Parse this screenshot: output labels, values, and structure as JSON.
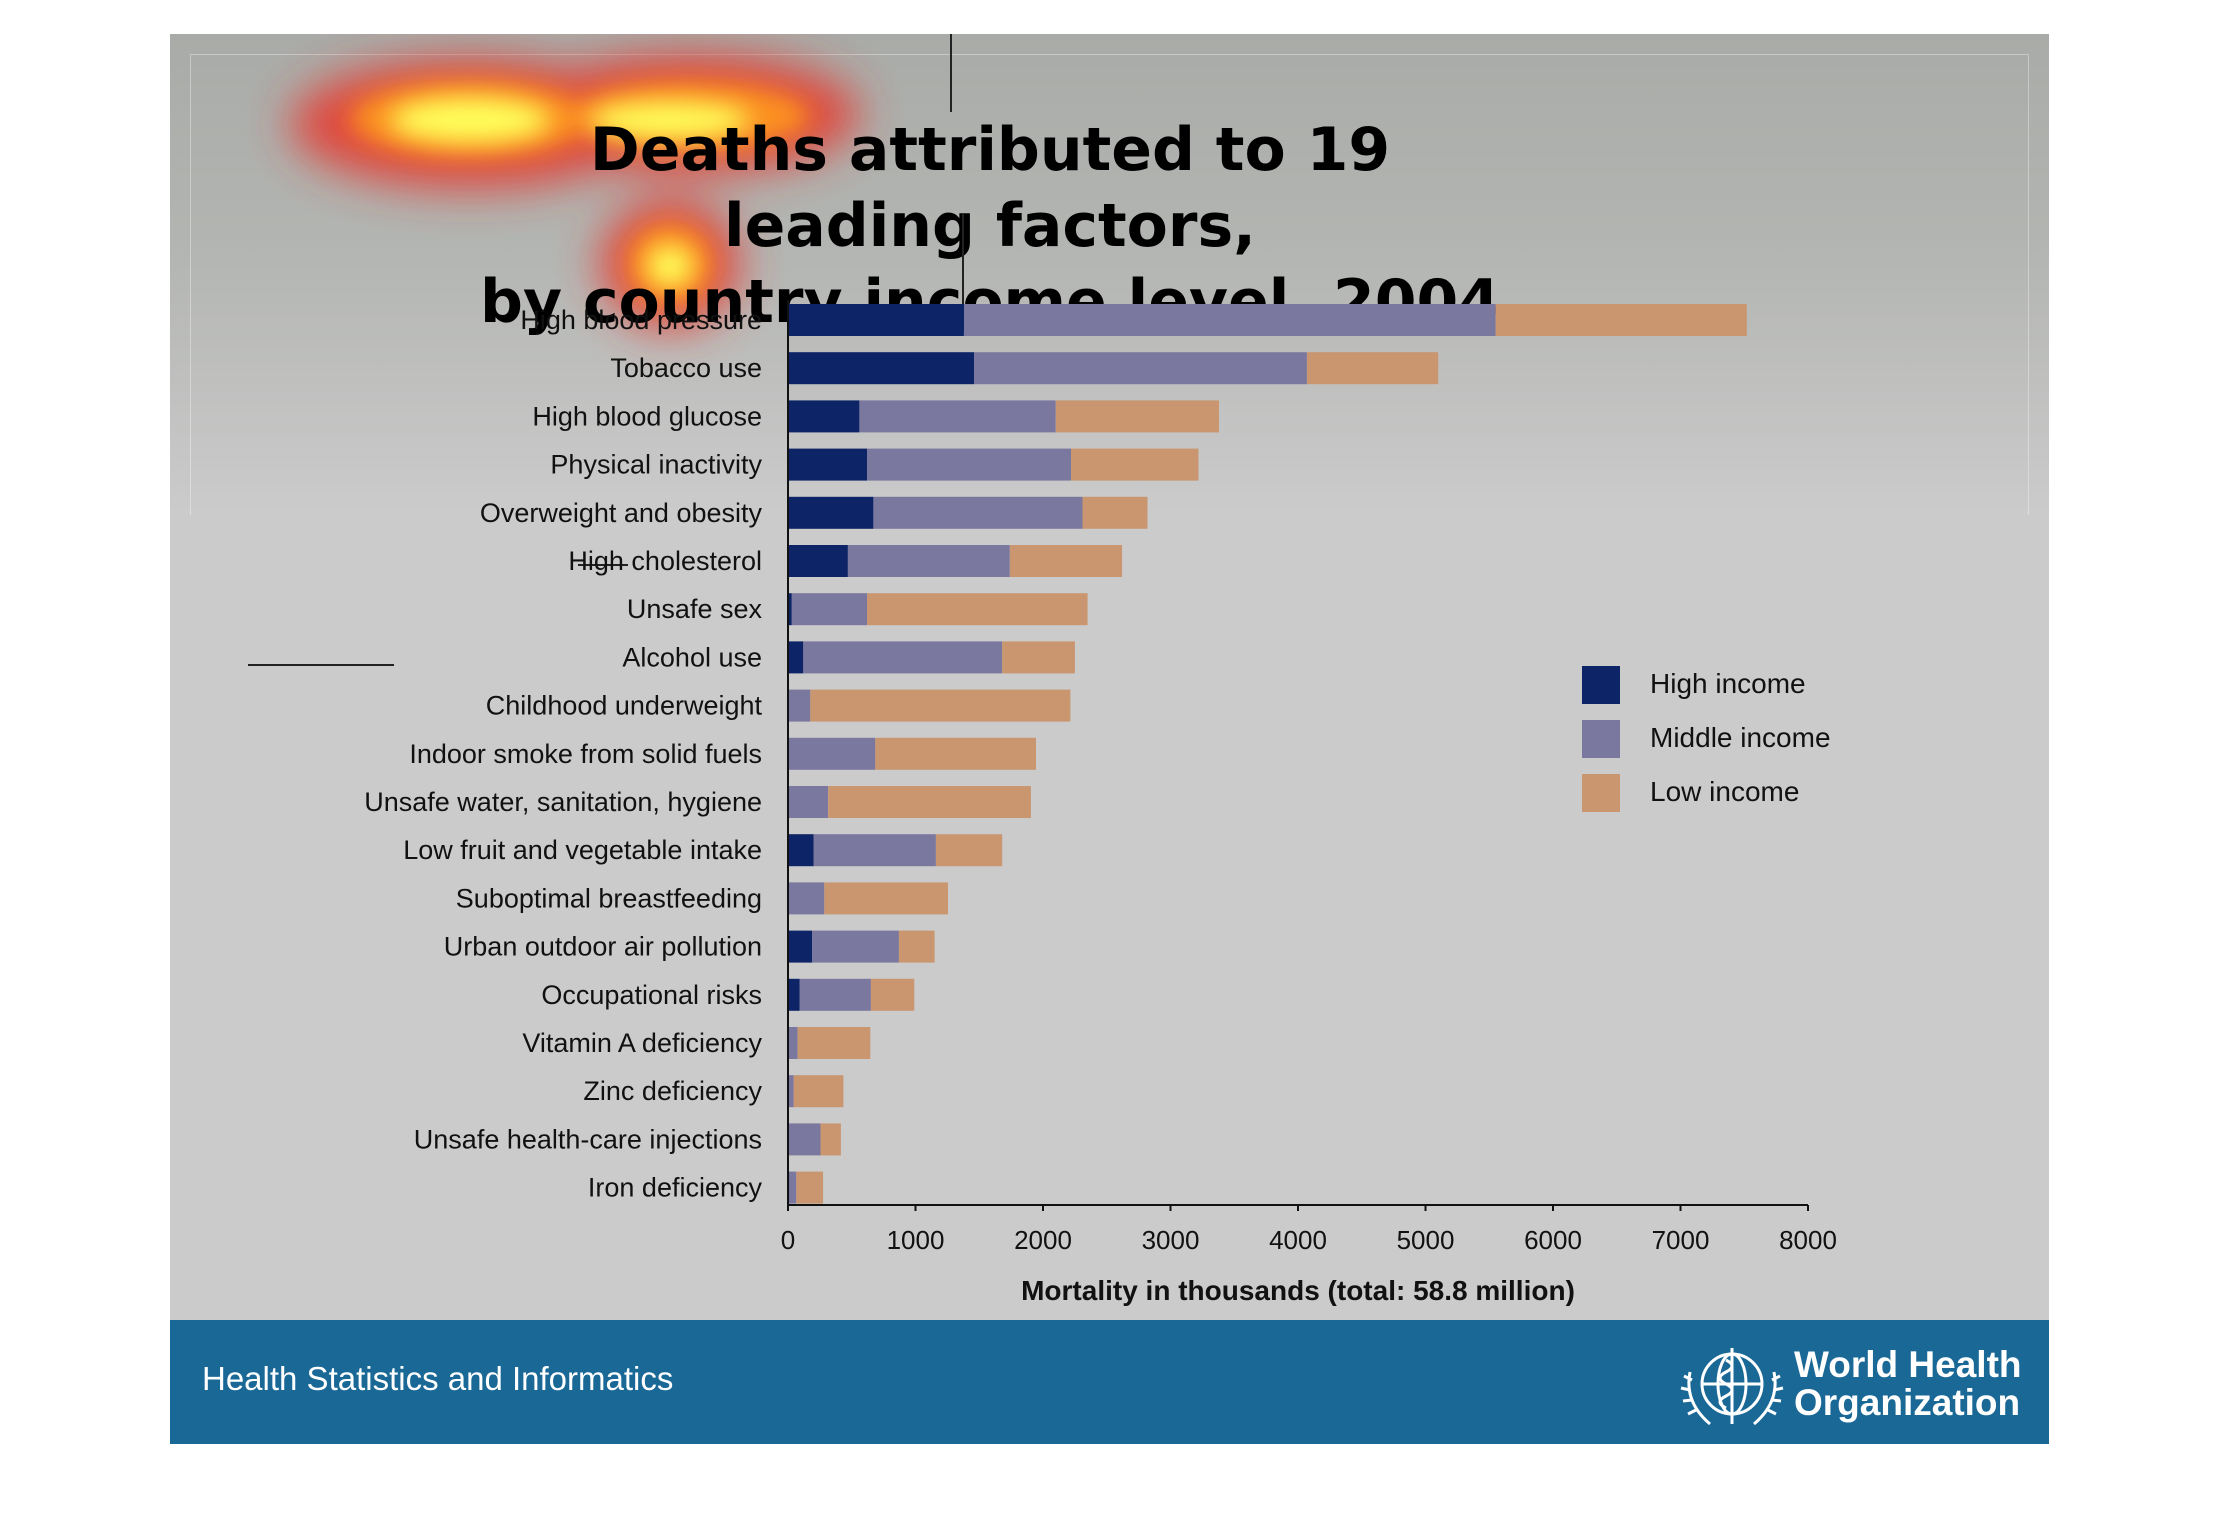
{
  "slide": {
    "title_line1": "Deaths attributed to 19 leading factors,",
    "title_line2": "by country income level, 2004"
  },
  "footer": {
    "text": "Health Statistics and Informatics",
    "org_line1": "World Health",
    "org_line2": "Organization",
    "bar_color": "#1a6896",
    "logo_icon": "who-emblem-icon"
  },
  "overlay": {
    "type": "attention-heatmap",
    "icon": "heatmap-overlay"
  },
  "chart_data": {
    "type": "bar",
    "orientation": "horizontal",
    "stacked": true,
    "title": "Deaths attributed to 19 leading factors, by country income level, 2004",
    "xlabel": "Mortality in thousands (total: 58.8 million)",
    "ylabel": "",
    "xlim": [
      0,
      8000
    ],
    "xticks": [
      0,
      1000,
      2000,
      3000,
      4000,
      5000,
      6000,
      7000,
      8000
    ],
    "grid": false,
    "legend_position": "right",
    "categories": [
      "High blood pressure",
      "Tobacco use",
      "High blood glucose",
      "Physical inactivity",
      "Overweight and obesity",
      "High cholesterol",
      "Unsafe sex",
      "Alcohol use",
      "Childhood underweight",
      "Indoor smoke from solid fuels",
      "Unsafe water, sanitation, hygiene",
      "Low fruit and vegetable intake",
      "Suboptimal breastfeeding",
      "Urban outdoor air pollution",
      "Occupational risks",
      "Vitamin A deficiency",
      "Zinc deficiency",
      "Unsafe health-care injections",
      "Iron deficiency"
    ],
    "series": [
      {
        "name": "High income",
        "color": "#0d2467",
        "values": [
          1380,
          1460,
          560,
          620,
          670,
          470,
          30,
          120,
          5,
          5,
          5,
          200,
          5,
          190,
          90,
          5,
          5,
          5,
          10
        ]
      },
      {
        "name": "Middle income",
        "color": "#7a789e",
        "values": [
          4170,
          2610,
          1540,
          1600,
          1640,
          1270,
          590,
          1560,
          170,
          680,
          310,
          960,
          280,
          680,
          560,
          70,
          40,
          250,
          55
        ]
      },
      {
        "name": "Low income",
        "color": "#c99670",
        "values": [
          1970,
          1030,
          1280,
          1000,
          510,
          880,
          1730,
          570,
          2040,
          1260,
          1590,
          520,
          970,
          280,
          340,
          570,
          390,
          160,
          210
        ]
      }
    ]
  }
}
